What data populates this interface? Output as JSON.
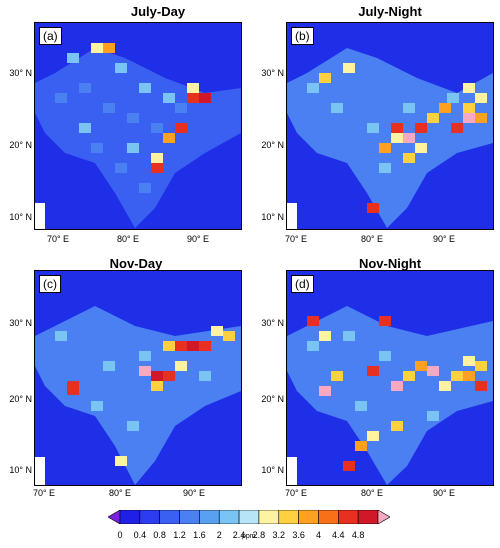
{
  "panels": [
    {
      "title": "July-Day",
      "label": "(a)"
    },
    {
      "title": "July-Night",
      "label": "(b)"
    },
    {
      "title": "Nov-Day",
      "label": "(c)"
    },
    {
      "title": "Nov-Night",
      "label": "(d)"
    }
  ],
  "y_ticks": [
    "30° N",
    "20° N",
    "10° N"
  ],
  "x_ticks": [
    "70° E",
    "80° E",
    "90° E"
  ],
  "colorbar": {
    "levels": [
      "0",
      "0.4",
      "0.8",
      "1.2",
      "1.6",
      "2",
      "2.4",
      "2.8",
      "3.2",
      "3.6",
      "4",
      "4.4",
      "4.8"
    ],
    "unit": "ppm",
    "colors": [
      "#7b1fe0",
      "#1f1fe6",
      "#2c3cf0",
      "#3a60f2",
      "#4a80f2",
      "#5aa0f0",
      "#7ac4f4",
      "#b8e4f8",
      "#fff2a0",
      "#ffd040",
      "#ffa020",
      "#f87018",
      "#e83020",
      "#d01828",
      "#f8a8c0"
    ]
  }
}
